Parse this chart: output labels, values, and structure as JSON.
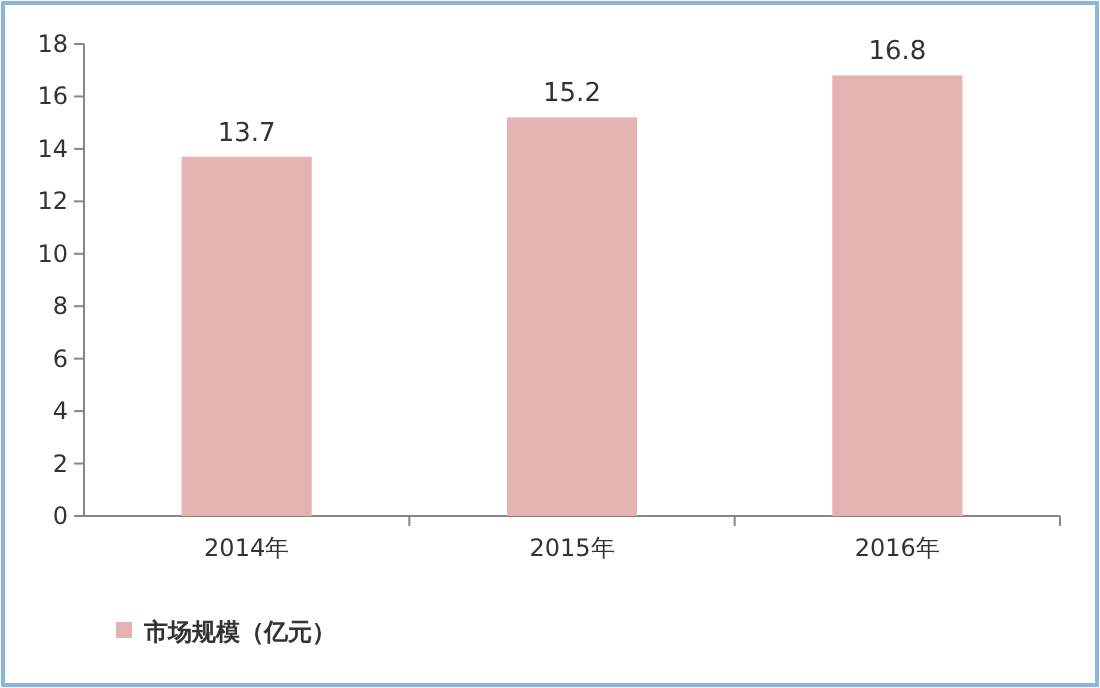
{
  "chart_data": {
    "type": "bar",
    "categories": [
      "2014年",
      "2015年",
      "2016年"
    ],
    "series": [
      {
        "name": "市场规模（亿元）",
        "color": "#e6b3b3",
        "values": [
          13.7,
          15.2,
          16.8
        ]
      }
    ],
    "ylim": [
      0,
      18
    ],
    "yticks": [
      0,
      2,
      4,
      6,
      8,
      10,
      12,
      14,
      16,
      18
    ],
    "data_labels": true,
    "legend": "bottom left"
  }
}
